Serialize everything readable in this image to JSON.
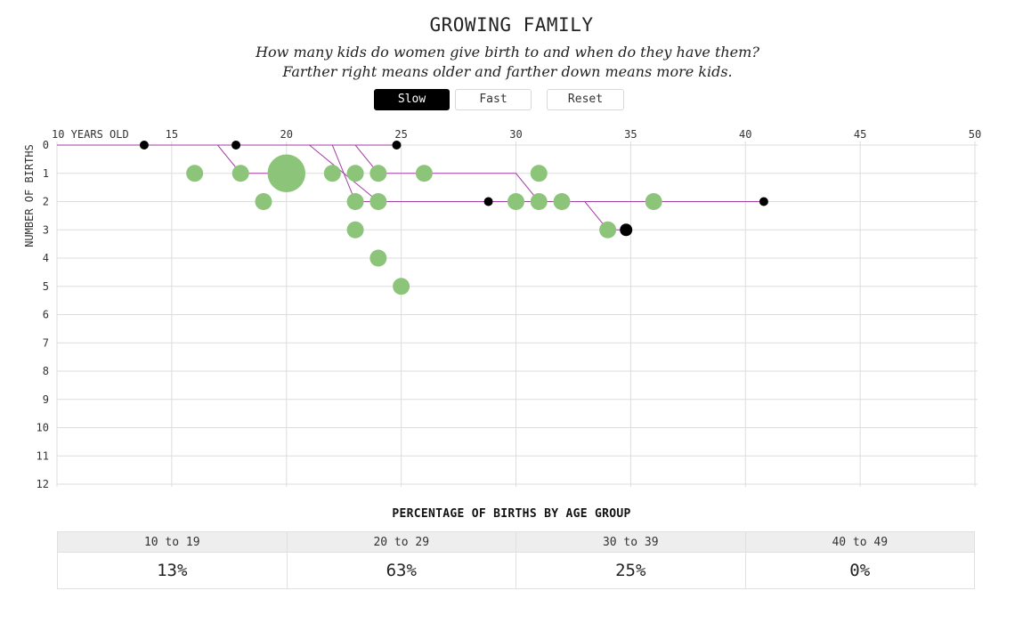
{
  "header": {
    "title": "GROWING FAMILY",
    "subtitle": "How many kids do women give birth to and when do they have them? Farther right means older and farther down means more kids."
  },
  "controls": {
    "slow_label": "Slow",
    "fast_label": "Fast",
    "reset_label": "Reset",
    "active": "Slow"
  },
  "chart_data": {
    "type": "scatter",
    "xlabel": "",
    "ylabel": "NUMBER OF BIRTHS",
    "x_tick_labels": [
      "10 YEARS OLD",
      "15",
      "20",
      "25",
      "30",
      "35",
      "40",
      "45",
      "50"
    ],
    "x_ticks": [
      10,
      15,
      20,
      25,
      30,
      35,
      40,
      45,
      50
    ],
    "y_ticks": [
      0,
      1,
      2,
      3,
      4,
      5,
      6,
      7,
      8,
      9,
      10,
      11,
      12
    ],
    "xlim": [
      10,
      50
    ],
    "ylim": [
      0,
      12
    ],
    "grid": true,
    "colors": {
      "bubble": "#8cc47a",
      "path": "#a33ea6",
      "marker": "#000000",
      "grid": "#dddddd"
    },
    "birth_bubbles": [
      {
        "age": 16,
        "births": 1,
        "count": 1
      },
      {
        "age": 18,
        "births": 1,
        "count": 1
      },
      {
        "age": 19,
        "births": 2,
        "count": 1
      },
      {
        "age": 20,
        "births": 1,
        "count": 5
      },
      {
        "age": 22,
        "births": 1,
        "count": 1
      },
      {
        "age": 23,
        "births": 1,
        "count": 1
      },
      {
        "age": 23,
        "births": 2,
        "count": 1
      },
      {
        "age": 23,
        "births": 3,
        "count": 1
      },
      {
        "age": 24,
        "births": 1,
        "count": 1
      },
      {
        "age": 24,
        "births": 2,
        "count": 1
      },
      {
        "age": 24,
        "births": 4,
        "count": 1
      },
      {
        "age": 25,
        "births": 5,
        "count": 1
      },
      {
        "age": 26,
        "births": 1,
        "count": 1
      },
      {
        "age": 30,
        "births": 2,
        "count": 1
      },
      {
        "age": 31,
        "births": 1,
        "count": 1
      },
      {
        "age": 31,
        "births": 2,
        "count": 1
      },
      {
        "age": 32,
        "births": 2,
        "count": 1
      },
      {
        "age": 34,
        "births": 3,
        "count": 1
      },
      {
        "age": 36,
        "births": 2,
        "count": 1
      }
    ],
    "paths": [
      {
        "points": [
          [
            10,
            0
          ],
          [
            13.8,
            0
          ]
        ]
      },
      {
        "points": [
          [
            10,
            0
          ],
          [
            17,
            0
          ],
          [
            18,
            1
          ],
          [
            20,
            1
          ]
        ]
      },
      {
        "points": [
          [
            10,
            0
          ],
          [
            21,
            0
          ],
          [
            24,
            2
          ],
          [
            28.8,
            2
          ]
        ]
      },
      {
        "points": [
          [
            10,
            0
          ],
          [
            23,
            0
          ],
          [
            24,
            1
          ],
          [
            30,
            1
          ],
          [
            31,
            2
          ],
          [
            33,
            2
          ],
          [
            34,
            3
          ],
          [
            34.8,
            3
          ]
        ]
      },
      {
        "points": [
          [
            10,
            0
          ],
          [
            24.8,
            0
          ]
        ]
      },
      {
        "points": [
          [
            10,
            0
          ],
          [
            17.8,
            0
          ]
        ]
      },
      {
        "points": [
          [
            10,
            0
          ],
          [
            22,
            0
          ],
          [
            23,
            2
          ],
          [
            40.8,
            2
          ]
        ]
      }
    ],
    "current_markers": [
      {
        "age": 13.8,
        "births": 0,
        "size": "small"
      },
      {
        "age": 17.8,
        "births": 0,
        "size": "small"
      },
      {
        "age": 24.8,
        "births": 0,
        "size": "small"
      },
      {
        "age": 28.8,
        "births": 2,
        "size": "small"
      },
      {
        "age": 34.8,
        "births": 3,
        "size": "large"
      },
      {
        "age": 40.8,
        "births": 2,
        "size": "small"
      }
    ]
  },
  "summary": {
    "title": "PERCENTAGE OF BIRTHS BY AGE GROUP",
    "groups": [
      {
        "label": "10 to 19",
        "value": "13%"
      },
      {
        "label": "20 to 29",
        "value": "63%"
      },
      {
        "label": "30 to 39",
        "value": "25%"
      },
      {
        "label": "40 to 49",
        "value": "0%"
      }
    ]
  }
}
